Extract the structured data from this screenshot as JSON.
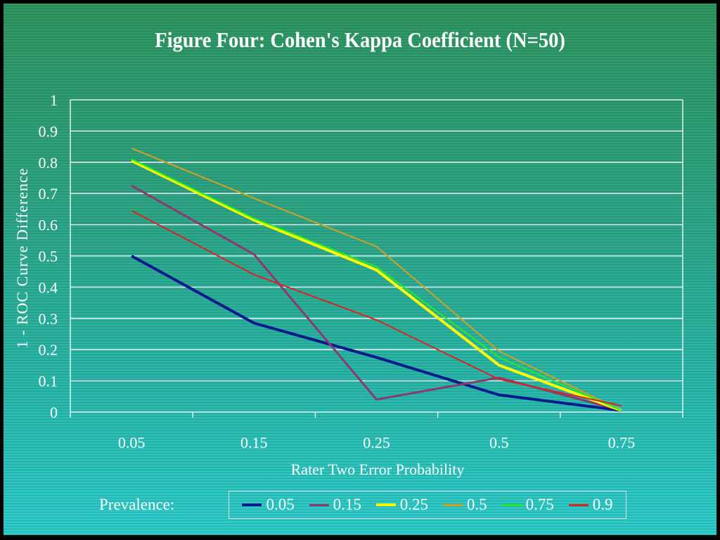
{
  "chart_data": {
    "type": "line",
    "title": "Figure Four:  Cohen's Kappa Coefficient (N=50)",
    "xlabel": "Rater Two Error Probability",
    "ylabel": "1 - ROC Curve Difference",
    "categories": [
      "0.05",
      "0.15",
      "0.25",
      "0.5",
      "0.75"
    ],
    "ylim": [
      0,
      1
    ],
    "yticks": [
      "0",
      "0.1",
      "0.2",
      "0.3",
      "0.4",
      "0.5",
      "0.6",
      "0.7",
      "0.8",
      "0.9",
      "1"
    ],
    "grid": true,
    "legend_title": "Prevalence:",
    "legend_position": "bottom",
    "series": [
      {
        "name": "0.05",
        "color": "#0a1a8c",
        "width": 4,
        "values": [
          0.5,
          0.285,
          0.175,
          0.055,
          0.005
        ]
      },
      {
        "name": "0.15",
        "color": "#8a3a6e",
        "width": 3,
        "values": [
          0.725,
          0.505,
          0.04,
          0.11,
          0.005
        ]
      },
      {
        "name": "0.25",
        "color": "#ffff00",
        "width": 4,
        "values": [
          0.805,
          0.615,
          0.455,
          0.15,
          0.005
        ]
      },
      {
        "name": "0.5",
        "color": "#d4a020",
        "width": 2,
        "values": [
          0.845,
          0.685,
          0.53,
          0.195,
          0.005
        ]
      },
      {
        "name": "0.75",
        "color": "#22ee22",
        "width": 2,
        "values": [
          0.81,
          0.62,
          0.465,
          0.175,
          0.005
        ]
      },
      {
        "name": "0.9",
        "color": "#dd2222",
        "width": 2,
        "values": [
          0.645,
          0.44,
          0.295,
          0.105,
          0.02
        ]
      }
    ]
  }
}
